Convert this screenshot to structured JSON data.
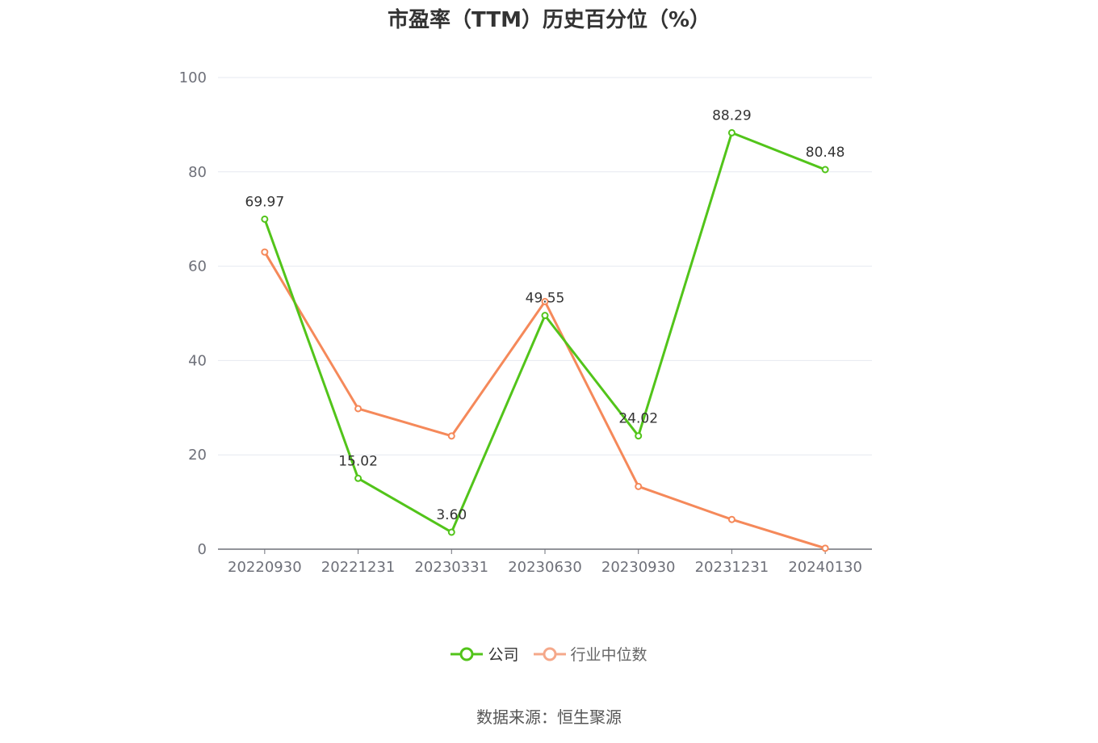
{
  "title": "市盈率（TTM）历史百分位（%）",
  "source": "数据来源：恒生聚源",
  "colors": {
    "company": "#52c41a",
    "industry": "#f5895a",
    "grid": "#e6e9f0",
    "axis": "#6e7079"
  },
  "chart_data": {
    "type": "line",
    "title": "市盈率（TTM）历史百分位（%）",
    "categories": [
      "20220930",
      "20221231",
      "20230331",
      "20230630",
      "20230930",
      "20231231",
      "20240130"
    ],
    "ylim": [
      0,
      100
    ],
    "yticks": [
      0,
      20,
      40,
      60,
      80,
      100
    ],
    "grid": true,
    "legend_position": "bottom",
    "series": [
      {
        "name": "公司",
        "values": [
          69.97,
          15.02,
          3.6,
          49.55,
          24.02,
          88.29,
          80.48
        ],
        "labels": [
          "69.97",
          "15.02",
          "3.60",
          "49.55",
          "24.02",
          "88.29",
          "80.48"
        ]
      },
      {
        "name": "行业中位数",
        "values": [
          63.0,
          29.8,
          24.0,
          52.5,
          13.3,
          6.3,
          0.2
        ]
      }
    ]
  }
}
